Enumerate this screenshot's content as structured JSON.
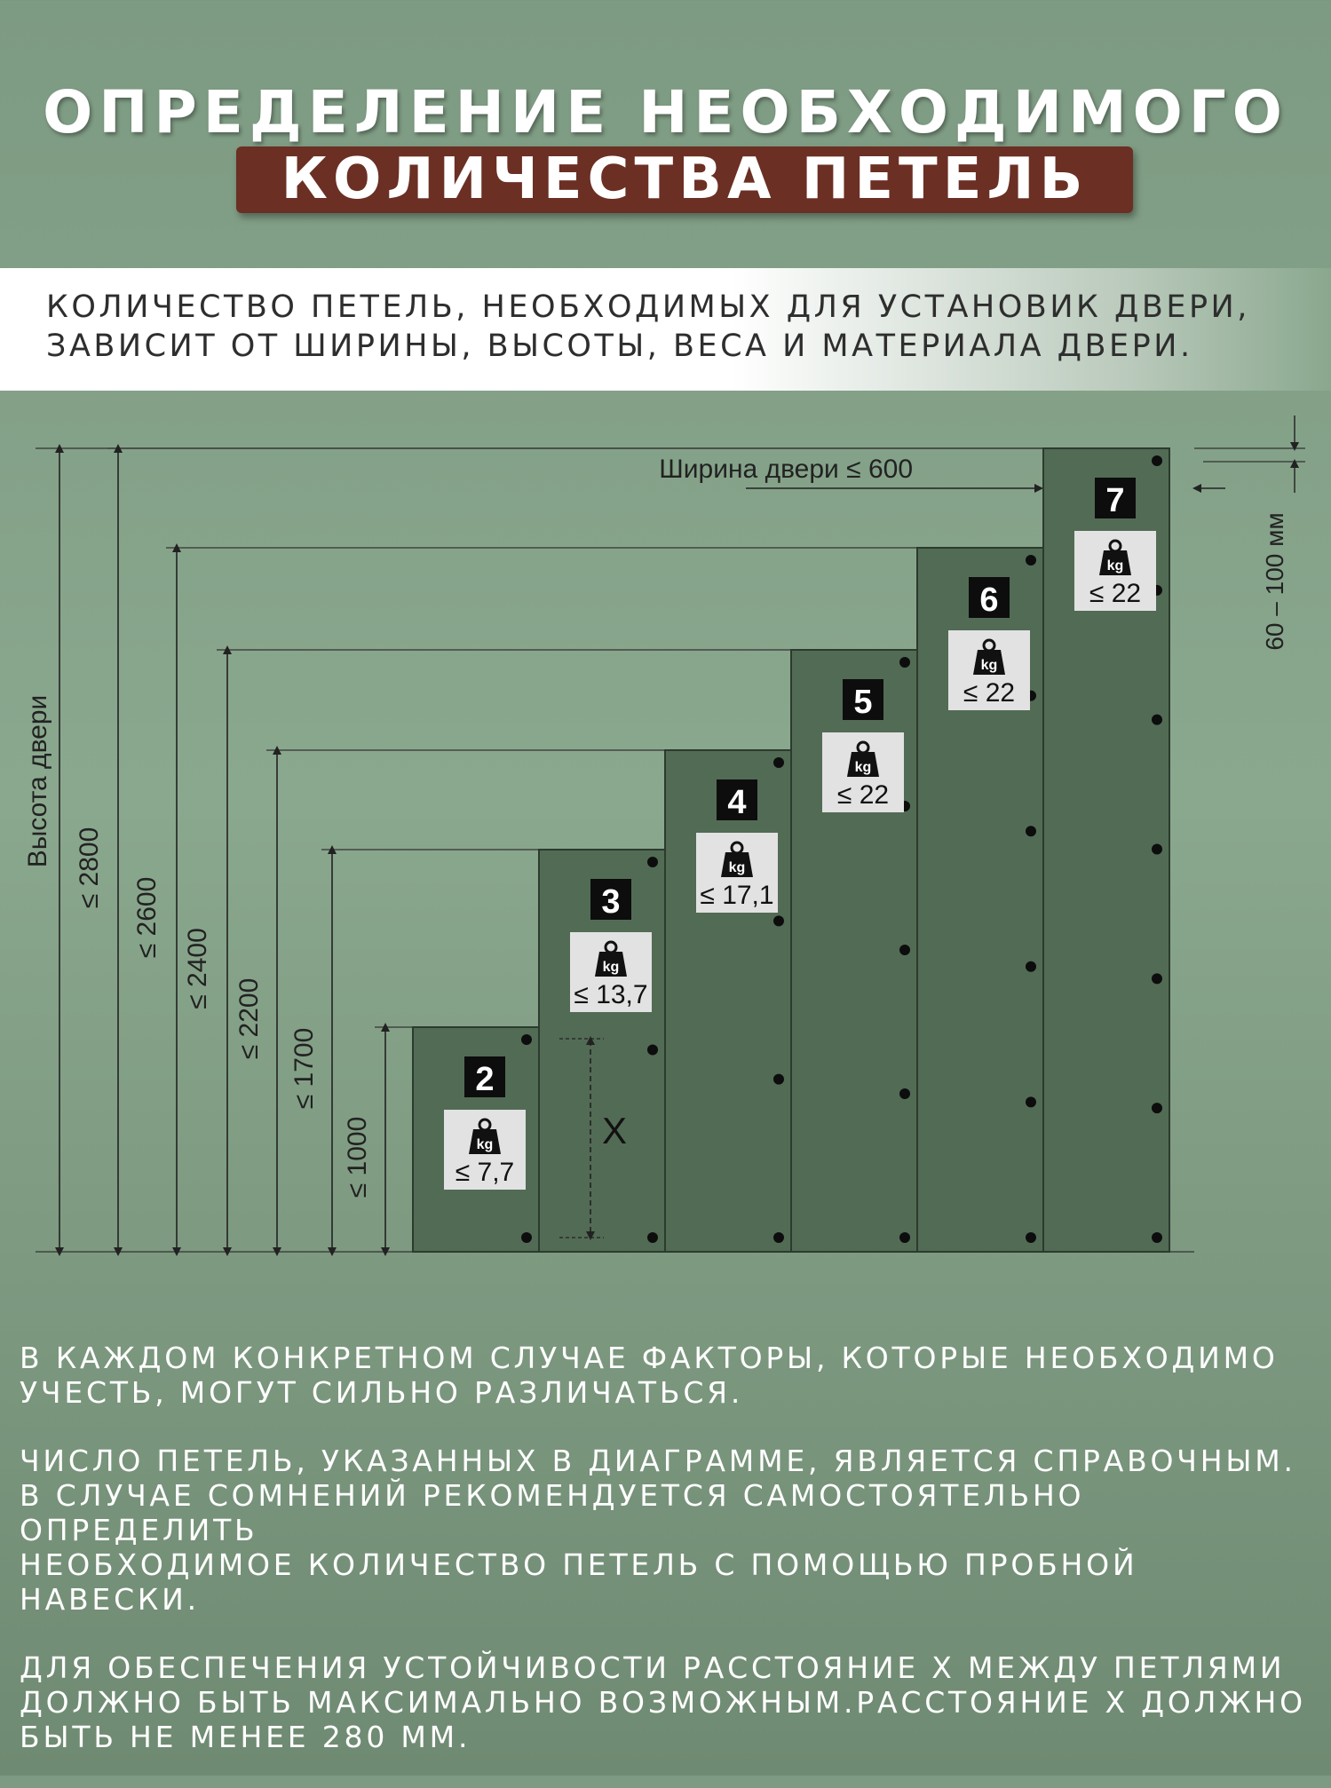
{
  "title": {
    "line1": "ОПРЕДЕЛЕНИЕ НЕОБХОДИМОГО",
    "line2": "КОЛИЧЕСТВА ПЕТЕЛЬ"
  },
  "intro": "КОЛИЧЕСТВО ПЕТЕЛЬ, НЕОБХОДИМЫХ ДЛЯ УСТАНОВИК ДВЕРИ, ЗАВИСИТ ОТ ШИРИНЫ, ВЫСОТЫ, ВЕСА И МАТЕРИАЛА ДВЕРИ.",
  "diagram": {
    "height_label": "Высота двери",
    "width_label": "Ширина двери ≤ 600",
    "offset_label": "60 – 100 мм",
    "x_label": "X",
    "kg_label": "kg",
    "doors": [
      {
        "hinges": "2",
        "height_label": "≤ 1000",
        "weight_label": "≤ 7,7"
      },
      {
        "hinges": "3",
        "height_label": "≤ 1700",
        "weight_label": "≤ 13,7"
      },
      {
        "hinges": "4",
        "height_label": "≤ 2200",
        "weight_label": "≤ 17,1"
      },
      {
        "hinges": "5",
        "height_label": "≤ 2400",
        "weight_label": "≤ 22"
      },
      {
        "hinges": "6",
        "height_label": "≤ 2600",
        "weight_label": "≤ 22"
      },
      {
        "hinges": "7",
        "height_label": "≤ 2800",
        "weight_label": "≤ 22"
      }
    ]
  },
  "notes": [
    "В КАЖДОМ КОНКРЕТНОМ СЛУЧАЕ ФАКТОРЫ, КОТОРЫЕ НЕОБХОДИМО\nУЧЕСТЬ, МОГУТ СИЛЬНО РАЗЛИЧАТЬСЯ.",
    "ЧИСЛО ПЕТЕЛЬ, УКАЗАННЫХ В ДИАГРАММЕ, ЯВЛЯЕТСЯ СПРАВОЧНЫМ.\nВ СЛУЧАЕ СОМНЕНИЙ РЕКОМЕНДУЕТСЯ САМОСТОЯТЕЛЬНО ОПРЕДЕЛИТЬ\nНЕОБХОДИМОЕ КОЛИЧЕСТВО ПЕТЕЛЬ С ПОМОЩЬЮ ПРОБНОЙ НАВЕСКИ.",
    "ДЛЯ ОБЕСПЕЧЕНИЯ УСТОЙЧИВОСТИ РАССТОЯНИЕ X МЕЖДУ ПЕТЛЯМИ\nДОЛЖНО БЫТЬ МАКСИМАЛЬНО ВОЗМОЖНЫМ.РАССТОЯНИЕ X ДОЛЖНО\nБЫТЬ НЕ МЕНЕЕ 280 ММ."
  ],
  "colors": {
    "door": "#526b55",
    "door_border": "#2c3b2e",
    "accent_box": "#6b2f24",
    "line": "#333333"
  }
}
